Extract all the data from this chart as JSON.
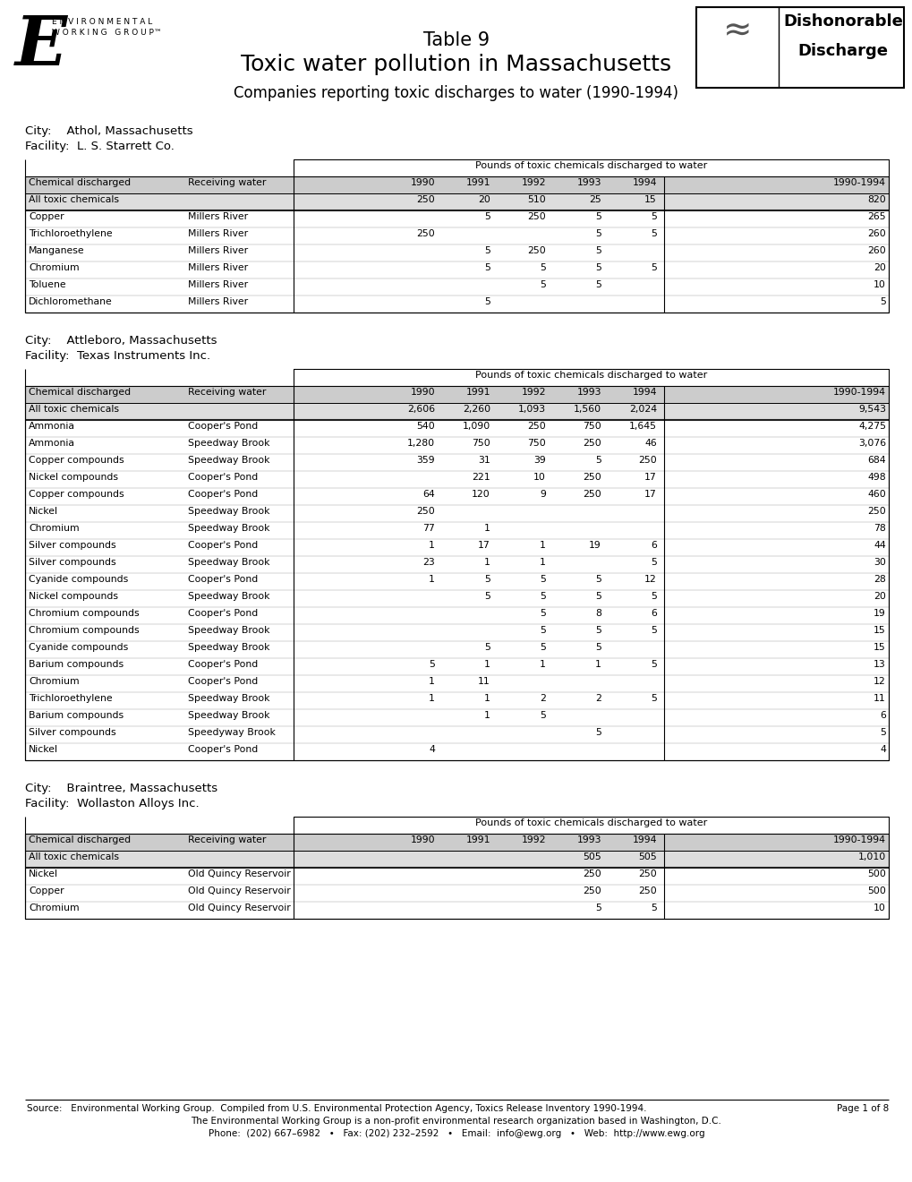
{
  "title_line1": "Table 9",
  "title_line2": "Toxic water pollution in Massachusetts",
  "title_line3": "Companies reporting toxic discharges to water (1990-1994)",
  "col_headers": [
    "Chemical discharged",
    "Receiving water",
    "1990",
    "1991",
    "1992",
    "1993",
    "1994",
    "1990-1994"
  ],
  "pounds_header": "Pounds of toxic chemicals discharged to water",
  "tables": [
    {
      "city": "City:    Athol, Massachusetts",
      "facility": "Facility:  L. S. Starrett Co.",
      "summary_row": [
        "All toxic chemicals",
        "",
        "250",
        "20",
        "510",
        "25",
        "15",
        "820"
      ],
      "rows": [
        [
          "Copper",
          "Millers River",
          "",
          "5",
          "250",
          "5",
          "5",
          "265"
        ],
        [
          "Trichloroethylene",
          "Millers River",
          "250",
          "",
          "",
          "5",
          "5",
          "260"
        ],
        [
          "Manganese",
          "Millers River",
          "",
          "5",
          "250",
          "5",
          "",
          "260"
        ],
        [
          "Chromium",
          "Millers River",
          "",
          "5",
          "5",
          "5",
          "5",
          "20"
        ],
        [
          "Toluene",
          "Millers River",
          "",
          "",
          "5",
          "5",
          "",
          "10"
        ],
        [
          "Dichloromethane",
          "Millers River",
          "",
          "5",
          "",
          "",
          "",
          "5"
        ]
      ]
    },
    {
      "city": "City:    Attleboro, Massachusetts",
      "facility": "Facility:  Texas Instruments Inc.",
      "summary_row": [
        "All toxic chemicals",
        "",
        "2,606",
        "2,260",
        "1,093",
        "1,560",
        "2,024",
        "9,543"
      ],
      "rows": [
        [
          "Ammonia",
          "Cooper's Pond",
          "540",
          "1,090",
          "250",
          "750",
          "1,645",
          "4,275"
        ],
        [
          "Ammonia",
          "Speedway Brook",
          "1,280",
          "750",
          "750",
          "250",
          "46",
          "3,076"
        ],
        [
          "Copper compounds",
          "Speedway Brook",
          "359",
          "31",
          "39",
          "5",
          "250",
          "684"
        ],
        [
          "Nickel compounds",
          "Cooper's Pond",
          "",
          "221",
          "10",
          "250",
          "17",
          "498"
        ],
        [
          "Copper compounds",
          "Cooper's Pond",
          "64",
          "120",
          "9",
          "250",
          "17",
          "460"
        ],
        [
          "Nickel",
          "Speedway Brook",
          "250",
          "",
          "",
          "",
          "",
          "250"
        ],
        [
          "Chromium",
          "Speedway Brook",
          "77",
          "1",
          "",
          "",
          "",
          "78"
        ],
        [
          "Silver compounds",
          "Cooper's Pond",
          "1",
          "17",
          "1",
          "19",
          "6",
          "44"
        ],
        [
          "Silver compounds",
          "Speedway Brook",
          "23",
          "1",
          "1",
          "",
          "5",
          "30"
        ],
        [
          "Cyanide compounds",
          "Cooper's Pond",
          "1",
          "5",
          "5",
          "5",
          "12",
          "28"
        ],
        [
          "Nickel compounds",
          "Speedway Brook",
          "",
          "5",
          "5",
          "5",
          "5",
          "20"
        ],
        [
          "Chromium compounds",
          "Cooper's Pond",
          "",
          "",
          "5",
          "8",
          "6",
          "19"
        ],
        [
          "Chromium compounds",
          "Speedway Brook",
          "",
          "",
          "5",
          "5",
          "5",
          "15"
        ],
        [
          "Cyanide compounds",
          "Speedway Brook",
          "",
          "5",
          "5",
          "5",
          "",
          "15"
        ],
        [
          "Barium compounds",
          "Cooper's Pond",
          "5",
          "1",
          "1",
          "1",
          "5",
          "13"
        ],
        [
          "Chromium",
          "Cooper's Pond",
          "1",
          "11",
          "",
          "",
          "",
          "12"
        ],
        [
          "Trichloroethylene",
          "Speedway Brook",
          "1",
          "1",
          "2",
          "2",
          "5",
          "11"
        ],
        [
          "Barium compounds",
          "Speedway Brook",
          "",
          "1",
          "5",
          "",
          "",
          "6"
        ],
        [
          "Silver compounds",
          "Speedyway Brook",
          "",
          "",
          "",
          "5",
          "",
          "5"
        ],
        [
          "Nickel",
          "Cooper's Pond",
          "4",
          "",
          "",
          "",
          "",
          "4"
        ]
      ]
    },
    {
      "city": "City:    Braintree, Massachusetts",
      "facility": "Facility:  Wollaston Alloys Inc.",
      "summary_row": [
        "All toxic chemicals",
        "",
        "",
        "",
        "",
        "505",
        "505",
        "1,010"
      ],
      "rows": [
        [
          "Nickel",
          "Old Quincy Reservoir",
          "",
          "",
          "",
          "250",
          "250",
          "500"
        ],
        [
          "Copper",
          "Old Quincy Reservoir",
          "",
          "",
          "",
          "250",
          "250",
          "500"
        ],
        [
          "Chromium",
          "Old Quincy Reservoir",
          "",
          "",
          "",
          "5",
          "5",
          "10"
        ]
      ]
    }
  ],
  "footer_source": "Source:   Environmental Working Group.  Compiled from U.S. Environmental Protection Agency, Toxics Release Inventory 1990-1994.",
  "footer_page": "Page 1 of 8",
  "footer_org": "The Environmental Working Group is a non-profit environmental research organization based in Washington, D.C.",
  "footer_contact": "Phone:  (202) 667–6982   •   Fax: (202) 232–2592   •   Email:  info@ewg.org   •   Web:  http://www.ewg.org"
}
